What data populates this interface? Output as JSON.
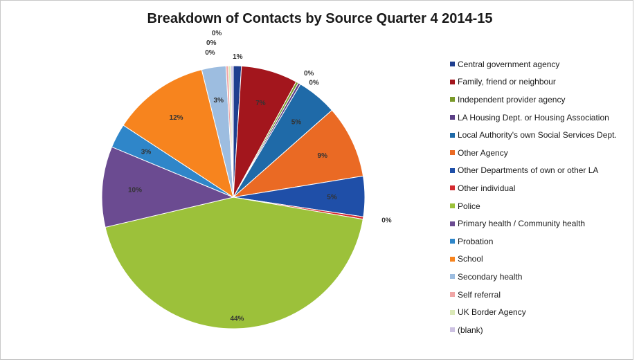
{
  "chart_data": {
    "type": "pie",
    "title": "Breakdown of Contacts by Source Quarter 4 2014-15",
    "legend_position": "right",
    "slices": [
      {
        "name": "Central government agency",
        "value": 1,
        "label": "1%",
        "color": "#1f3f8f"
      },
      {
        "name": "Family, friend or neighbour",
        "value": 7,
        "label": "7%",
        "color": "#a3161d"
      },
      {
        "name": "Independent provider agency",
        "value": 0.3,
        "label": "0%",
        "color": "#7a9a2a"
      },
      {
        "name": "LA Housing Dept. or Housing Association",
        "value": 0.3,
        "label": "0%",
        "color": "#5b3f86"
      },
      {
        "name": "Local Authority's own Social Services Dept.",
        "value": 5,
        "label": "5%",
        "color": "#1f6aa8"
      },
      {
        "name": "Other Agency",
        "value": 9,
        "label": "9%",
        "color": "#ea6a24"
      },
      {
        "name": "Other Departments of own or other LA",
        "value": 5,
        "label": "5%",
        "color": "#1f4fa8"
      },
      {
        "name": "Other individual",
        "value": 0.3,
        "label": "0%",
        "color": "#d42a30"
      },
      {
        "name": "Police",
        "value": 44,
        "label": "44%",
        "color": "#9cc13a"
      },
      {
        "name": "Primary health / Community health",
        "value": 10,
        "label": "10%",
        "color": "#6b4b91"
      },
      {
        "name": "Probation",
        "value": 3,
        "label": "3%",
        "color": "#2f86c9"
      },
      {
        "name": "School",
        "value": 12,
        "label": "12%",
        "color": "#f7841e"
      },
      {
        "name": "Secondary health",
        "value": 3,
        "label": "3%",
        "color": "#9dbde0"
      },
      {
        "name": "Self referral",
        "value": 0.3,
        "label": "0%",
        "color": "#f0a6a6"
      },
      {
        "name": "UK Border Agency",
        "value": 0.3,
        "label": "0%",
        "color": "#dbe9b8"
      },
      {
        "name": "(blank)",
        "value": 0.3,
        "label": "0%",
        "color": "#cdc2e2"
      }
    ]
  }
}
